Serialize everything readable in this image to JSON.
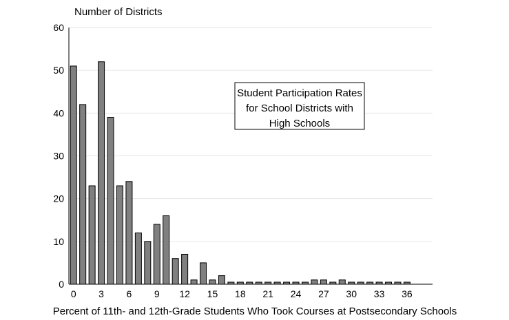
{
  "chart_data": {
    "type": "bar",
    "ylabel": "Number of Districts",
    "xlabel": "Percent of 11th- and 12th-Grade Students Who Took Courses at Postsecondary Schools",
    "annotation": {
      "lines": [
        "Student Participation Rates",
        "for School Districts with",
        "High Schools"
      ]
    },
    "ylim": [
      0,
      60
    ],
    "yticks": [
      0,
      10,
      20,
      30,
      40,
      50,
      60
    ],
    "x_tick_labels": [
      "0",
      "3",
      "6",
      "9",
      "12",
      "15",
      "18",
      "21",
      "24",
      "27",
      "30",
      "33",
      "36"
    ],
    "grid": true,
    "bar_color": "#808080",
    "categories": [
      0,
      1,
      2,
      3,
      4,
      5,
      6,
      7,
      8,
      9,
      10,
      11,
      12,
      13,
      14,
      15,
      16,
      17,
      18,
      19,
      20,
      21,
      22,
      23,
      24,
      25,
      26,
      27,
      28,
      29,
      30,
      31,
      32,
      33,
      34,
      35,
      36
    ],
    "values": [
      51,
      42,
      23,
      52,
      39,
      23,
      24,
      12,
      10,
      14,
      16,
      6,
      7,
      1,
      5,
      1,
      2,
      0,
      0,
      0,
      0,
      0,
      0,
      0,
      0,
      0,
      1,
      1,
      0,
      1,
      0,
      0,
      0,
      0,
      0,
      0,
      0
    ]
  }
}
